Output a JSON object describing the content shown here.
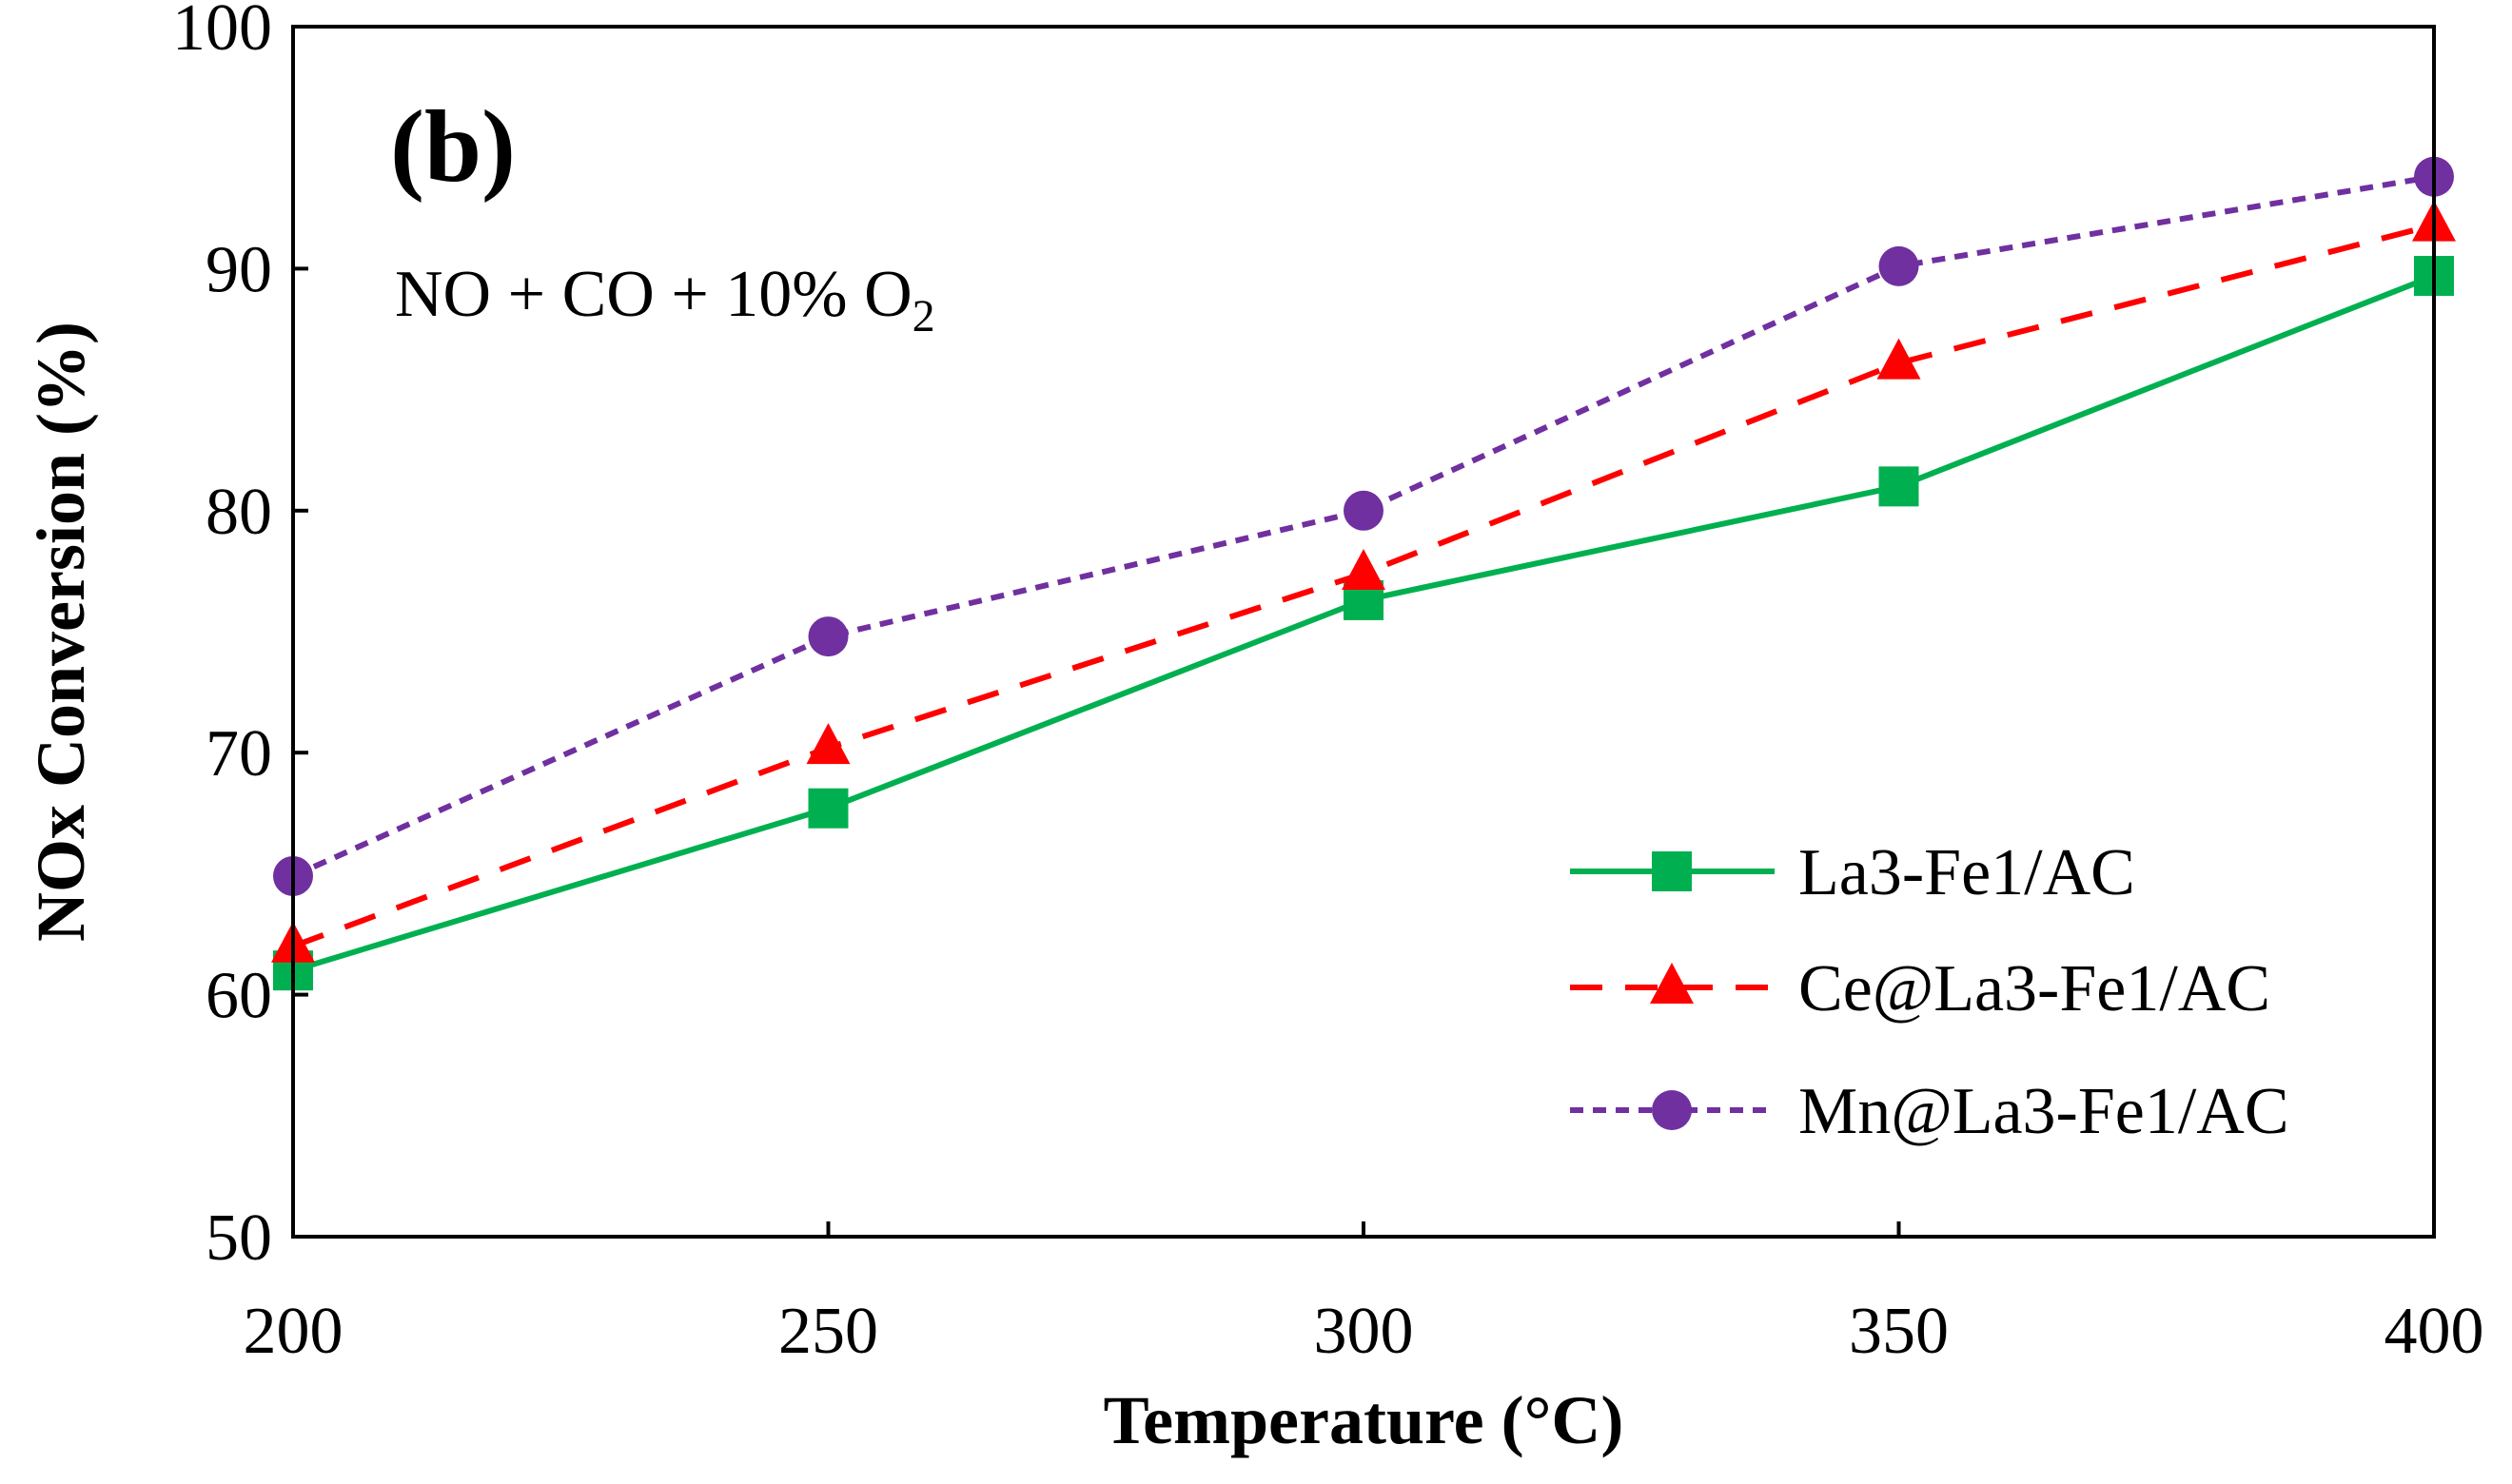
{
  "chart_data": {
    "type": "line",
    "panel_label": "(b)",
    "annotation": {
      "text": "NO + CO + 10% O",
      "subscript": "2"
    },
    "xlabel": "Temperature (°C)",
    "ylabel": "NOx Conversion (%)",
    "x": [
      200,
      250,
      300,
      350,
      400
    ],
    "xlim": [
      200,
      400
    ],
    "ylim": [
      50,
      100
    ],
    "x_ticks": [
      200,
      250,
      300,
      350,
      400
    ],
    "y_ticks": [
      50,
      60,
      70,
      80,
      90,
      100
    ],
    "grid": false,
    "legend_position": "bottom-right",
    "series": [
      {
        "name": "La3-Fe1/AC",
        "values": [
          61.0,
          67.7,
          76.3,
          81.0,
          89.7
        ],
        "color": "#00b050",
        "line_style": "solid",
        "marker": "square"
      },
      {
        "name": "Ce@La3-Fe1/AC",
        "values": [
          62.0,
          70.2,
          77.4,
          86.1,
          91.8
        ],
        "color": "#ff0000",
        "line_style": "dashed",
        "marker": "triangle"
      },
      {
        "name": "Mn@La3-Fe1/AC",
        "values": [
          64.9,
          74.8,
          80.0,
          90.1,
          93.8
        ],
        "color": "#7030a0",
        "line_style": "dotted",
        "marker": "circle"
      }
    ]
  }
}
